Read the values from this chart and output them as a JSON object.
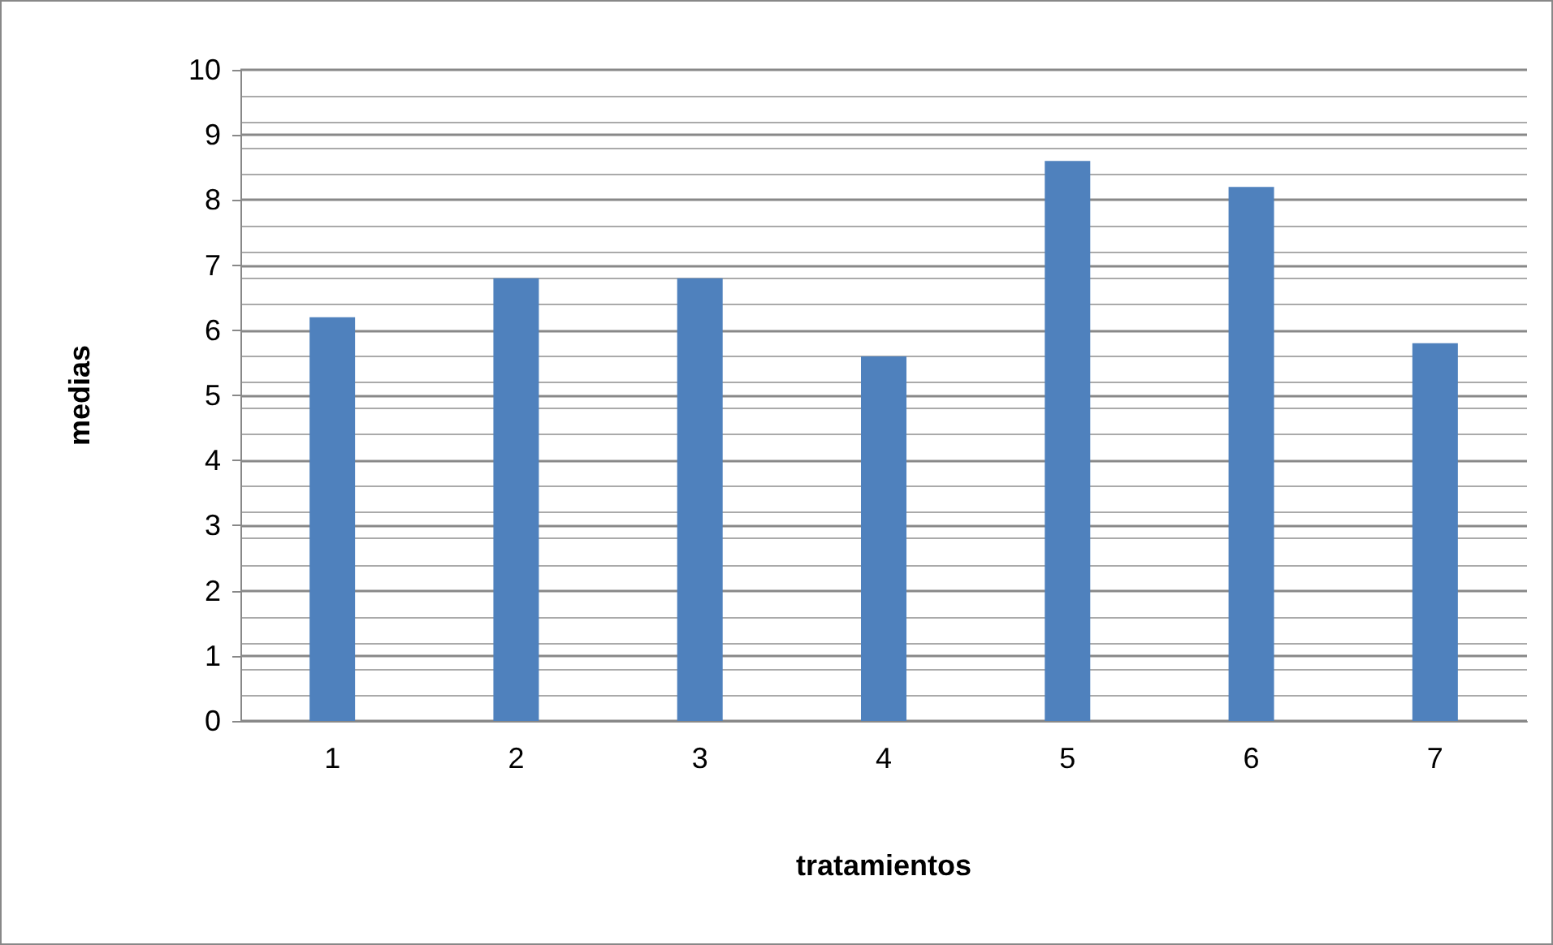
{
  "chart_data": {
    "type": "bar",
    "xlabel": "tratamientos",
    "ylabel": "medias",
    "categories": [
      "1",
      "2",
      "3",
      "4",
      "5",
      "6",
      "7"
    ],
    "values": [
      6.2,
      6.8,
      6.8,
      5.6,
      8.6,
      8.2,
      5.8
    ],
    "color": "#4f81bd",
    "ylim": [
      0,
      10
    ],
    "yticks": [
      0,
      1,
      2,
      3,
      4,
      5,
      6,
      7,
      8,
      9,
      10
    ],
    "grid": true
  }
}
